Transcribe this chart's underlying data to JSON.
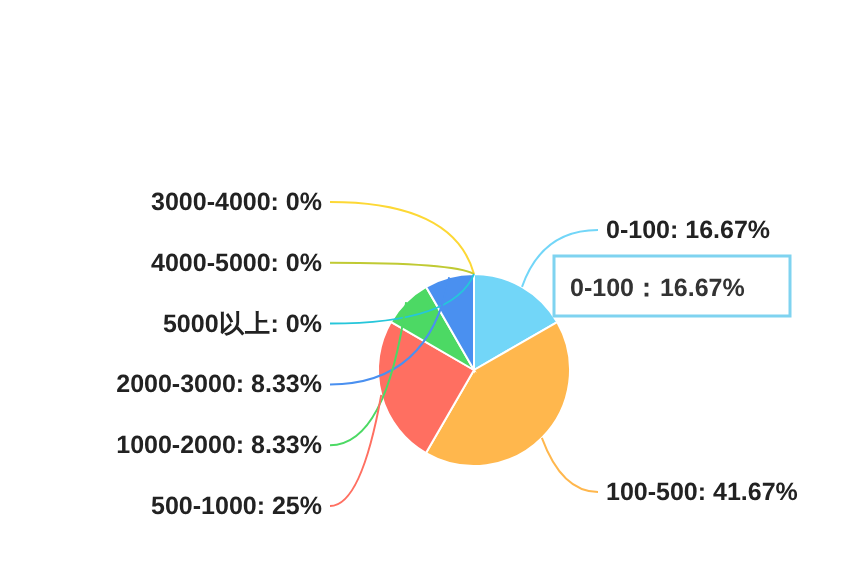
{
  "chart_data": {
    "type": "pie",
    "categories": [
      "0-100",
      "100-500",
      "500-1000",
      "1000-2000",
      "2000-3000",
      "5000以上",
      "4000-5000",
      "3000-4000"
    ],
    "values": [
      16.67,
      41.67,
      25,
      8.33,
      8.33,
      0,
      0,
      0
    ],
    "colors": [
      "#72d6f8",
      "#ffb74d",
      "#ff6f61",
      "#4cd964",
      "#4a90f0",
      "#26c6da",
      "#c0ca33",
      "#fdd835"
    ],
    "value_labels": [
      ": 16.67%",
      ": 41.67%",
      ": 25%",
      ": 8.33%",
      ": 8.33%",
      ": 0%",
      ": 0%",
      ": 0%"
    ],
    "legend": false,
    "annotations": [
      "0-100：16.67%"
    ]
  }
}
